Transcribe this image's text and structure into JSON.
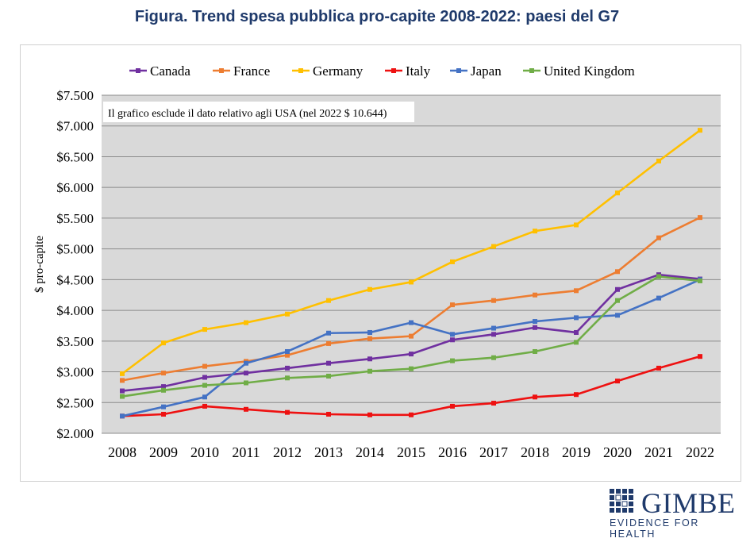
{
  "figure": {
    "title": "Figura. Trend spesa pubblica pro-capite 2008-2022: paesi del G7"
  },
  "logo": {
    "name": "GIMBE",
    "tagline": "EVIDENCE FOR HEALTH"
  },
  "chart_data": {
    "type": "line",
    "title": "",
    "xlabel": "",
    "ylabel": "$ pro-capite",
    "ylim": [
      2000,
      7500
    ],
    "grid": true,
    "legend_position": "top",
    "annotation": "Il grafico esclude il dato relativo agli USA (nel 2022 $ 10.644)",
    "y_ticks": [
      {
        "value": 2000,
        "label": "$2.000"
      },
      {
        "value": 2500,
        "label": "$2.500"
      },
      {
        "value": 3000,
        "label": "$3.000"
      },
      {
        "value": 3500,
        "label": "$3.500"
      },
      {
        "value": 4000,
        "label": "$4.000"
      },
      {
        "value": 4500,
        "label": "$4.500"
      },
      {
        "value": 5000,
        "label": "$5.000"
      },
      {
        "value": 5500,
        "label": "$5.500"
      },
      {
        "value": 6000,
        "label": "$6.000"
      },
      {
        "value": 6500,
        "label": "$6.500"
      },
      {
        "value": 7000,
        "label": "$7.000"
      },
      {
        "value": 7500,
        "label": "$7.500"
      }
    ],
    "categories": [
      "2008",
      "2009",
      "2010",
      "2011",
      "2012",
      "2013",
      "2014",
      "2015",
      "2016",
      "2017",
      "2018",
      "2019",
      "2020",
      "2021",
      "2022"
    ],
    "series": [
      {
        "name": "Canada",
        "color": "#7030a0",
        "values": [
          2690,
          2760,
          2910,
          2980,
          3060,
          3140,
          3210,
          3290,
          3520,
          3610,
          3720,
          3640,
          4340,
          4580,
          4510
        ]
      },
      {
        "name": "France",
        "color": "#ed7d31",
        "values": [
          2860,
          2980,
          3090,
          3170,
          3270,
          3460,
          3540,
          3580,
          4090,
          4160,
          4250,
          4320,
          4630,
          5180,
          5510
        ]
      },
      {
        "name": "Germany",
        "color": "#ffc000",
        "values": [
          2970,
          3470,
          3690,
          3800,
          3940,
          4160,
          4340,
          4460,
          4790,
          5040,
          5290,
          5390,
          5910,
          6430,
          6930
        ]
      },
      {
        "name": "Italy",
        "color": "#ee1111",
        "values": [
          2280,
          2310,
          2440,
          2390,
          2340,
          2310,
          2300,
          2300,
          2440,
          2490,
          2590,
          2630,
          2850,
          3060,
          3250
        ]
      },
      {
        "name": "Japan",
        "color": "#4472c4",
        "values": [
          2280,
          2430,
          2590,
          3140,
          3330,
          3630,
          3640,
          3800,
          3610,
          3710,
          3820,
          3880,
          3920,
          4200,
          4500
        ]
      },
      {
        "name": "United Kingdom",
        "color": "#70ad47",
        "values": [
          2600,
          2700,
          2780,
          2820,
          2900,
          2930,
          3010,
          3050,
          3180,
          3230,
          3330,
          3480,
          4160,
          4550,
          4480
        ]
      }
    ]
  }
}
